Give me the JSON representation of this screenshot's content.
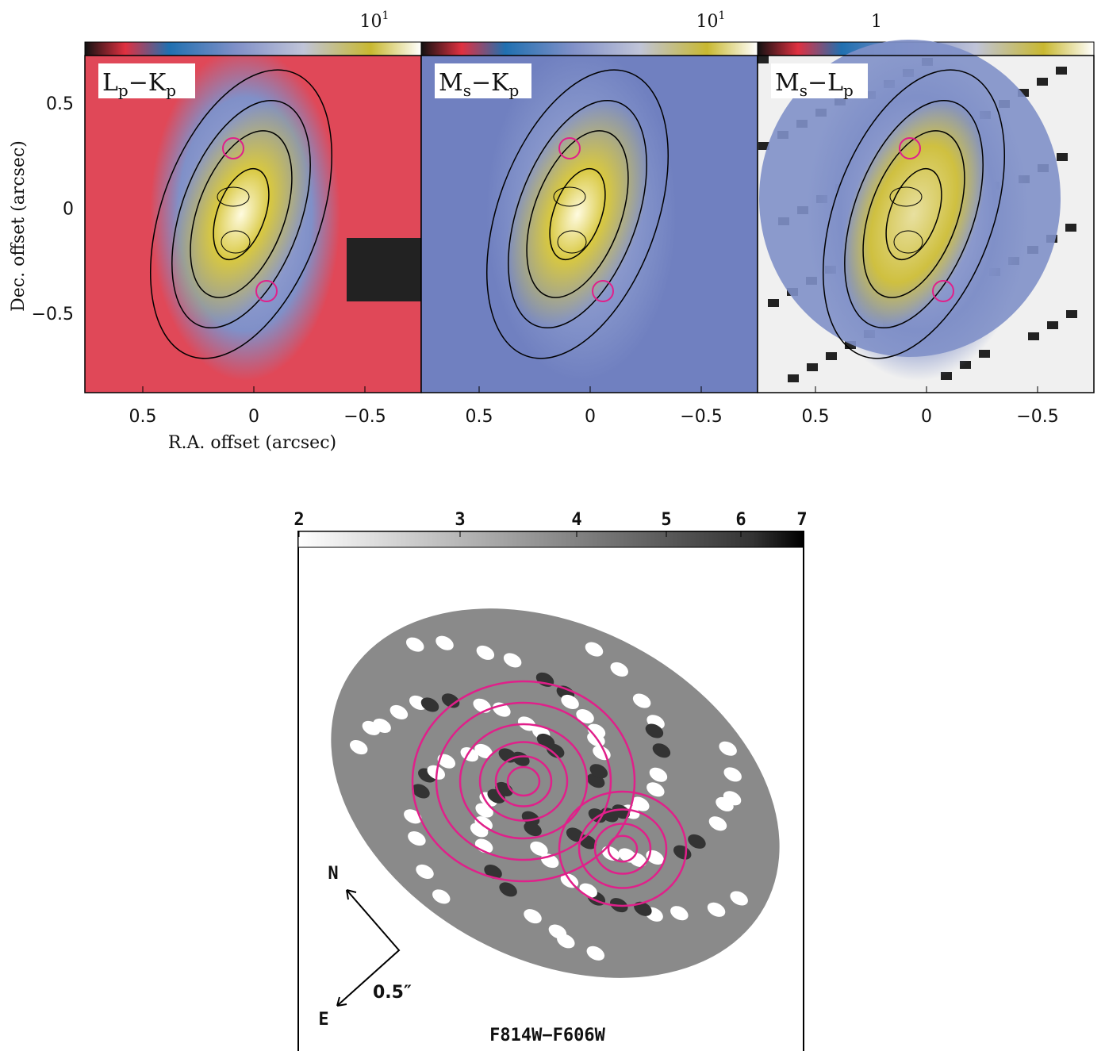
{
  "top_figure": {
    "y_axis_label": "Dec. offset (arcsec)",
    "x_axis_label": "R.A. offset (arcsec)",
    "y_ticks": [
      "0.5",
      "0",
      "−0.5"
    ],
    "x_ticks": [
      "0.5",
      "0",
      "−0.5"
    ],
    "panels": [
      {
        "label": [
          "L",
          "p",
          "−",
          "K",
          "p"
        ],
        "colorbar_tick": {
          "base": "10",
          "exp": "1"
        }
      },
      {
        "label": [
          "M",
          "s",
          "−",
          "K",
          "p"
        ],
        "colorbar_tick": {
          "base": "10",
          "exp": "1"
        }
      },
      {
        "label": [
          "M",
          "s",
          "−",
          "L",
          "p"
        ],
        "colorbar_tick": {
          "base": "1"
        }
      }
    ]
  },
  "bottom_figure": {
    "colorbar_ticks": [
      "2",
      "3",
      "4",
      "5",
      "6",
      "7"
    ],
    "compass": {
      "north": "N",
      "east": "E",
      "scale": "0.5″"
    },
    "title": "F814W−F606W"
  }
}
